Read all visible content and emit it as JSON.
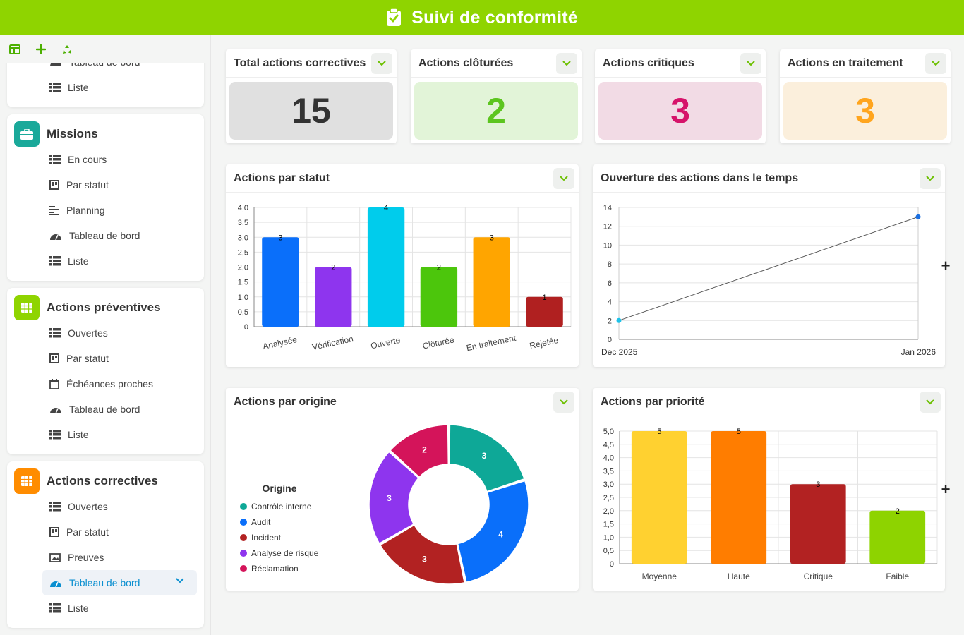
{
  "header": {
    "title": "Suivi de conformité"
  },
  "sidebar": {
    "top_partial": {
      "items": [
        "Tableau de bord",
        "Liste"
      ]
    },
    "groups": [
      {
        "title": "Missions",
        "color": "#1aa99a",
        "items": [
          "En cours",
          "Par statut",
          "Planning",
          "Tableau de bord",
          "Liste"
        ]
      },
      {
        "title": "Actions préventives",
        "color": "#8fd400",
        "items": [
          "Ouvertes",
          "Par statut",
          "Échéances proches",
          "Tableau de bord",
          "Liste"
        ]
      },
      {
        "title": "Actions correctives",
        "color": "#ff8c00",
        "items": [
          "Ouvertes",
          "Par statut",
          "Preuves",
          "Tableau de bord",
          "Liste"
        ],
        "active_item": "Tableau de bord"
      }
    ]
  },
  "kpis": [
    {
      "label": "Total actions correctives",
      "value": "15",
      "bg": "#e0e0e0",
      "color": "#333333"
    },
    {
      "label": "Actions clôturées",
      "value": "2",
      "bg": "#e2f4d8",
      "color": "#5cc51f"
    },
    {
      "label": "Actions critiques",
      "value": "3",
      "bg": "#f2dbe5",
      "color": "#d6136a"
    },
    {
      "label": "Actions en traitement",
      "value": "3",
      "bg": "#fbefdc",
      "color": "#ffa51e"
    }
  ],
  "panels": {
    "statut": "Actions par statut",
    "temps": "Ouverture des actions dans le temps",
    "origine": "Actions par origine",
    "priorite": "Actions par priorité"
  },
  "chart_data": [
    {
      "type": "bar",
      "title": "Actions par statut",
      "categories": [
        "Analysée",
        "Vérification",
        "Ouverte",
        "Clôturée",
        "En traitement",
        "Rejetée"
      ],
      "values": [
        3,
        2,
        4,
        2,
        3,
        1
      ],
      "colors": [
        "#0a6ffa",
        "#8e35ee",
        "#00ccec",
        "#4cc60c",
        "#ffa500",
        "#b02020"
      ],
      "ylim": [
        0,
        4
      ],
      "yticks": [
        "0",
        "0,5",
        "1,0",
        "1,5",
        "2,0",
        "2,5",
        "3,0",
        "3,5",
        "4,0"
      ],
      "grid": true
    },
    {
      "type": "line",
      "title": "Ouverture des actions dans le temps",
      "x": [
        "Dec 2025",
        "Jan 2026"
      ],
      "values": [
        2,
        13
      ],
      "ylim": [
        0,
        14
      ],
      "yticks": [
        "0",
        "2",
        "4",
        "6",
        "8",
        "10",
        "12",
        "14"
      ],
      "point_colors": [
        "#1fc2e8",
        "#1a6fe0"
      ],
      "grid": true
    },
    {
      "type": "pie",
      "title": "Actions par origine",
      "legend_title": "Origine",
      "legend_placement": "left",
      "categories": [
        "Contrôle interne",
        "Audit",
        "Incident",
        "Analyse de risque",
        "Réclamation"
      ],
      "values": [
        3,
        4,
        3,
        3,
        2
      ],
      "colors": [
        "#0ea897",
        "#0a6ffa",
        "#b22222",
        "#8e35ee",
        "#d4145a"
      ]
    },
    {
      "type": "bar",
      "title": "Actions par priorité",
      "categories": [
        "Moyenne",
        "Haute",
        "Critique",
        "Faible"
      ],
      "values": [
        5,
        5,
        3,
        2
      ],
      "colors": [
        "#ffd130",
        "#ff7d00",
        "#b22222",
        "#8ed300"
      ],
      "ylim": [
        0,
        5
      ],
      "yticks": [
        "0",
        "0,5",
        "1,0",
        "1,5",
        "2,0",
        "2,5",
        "3,0",
        "3,5",
        "4,0",
        "4,5",
        "5,0"
      ],
      "grid": true
    }
  ]
}
